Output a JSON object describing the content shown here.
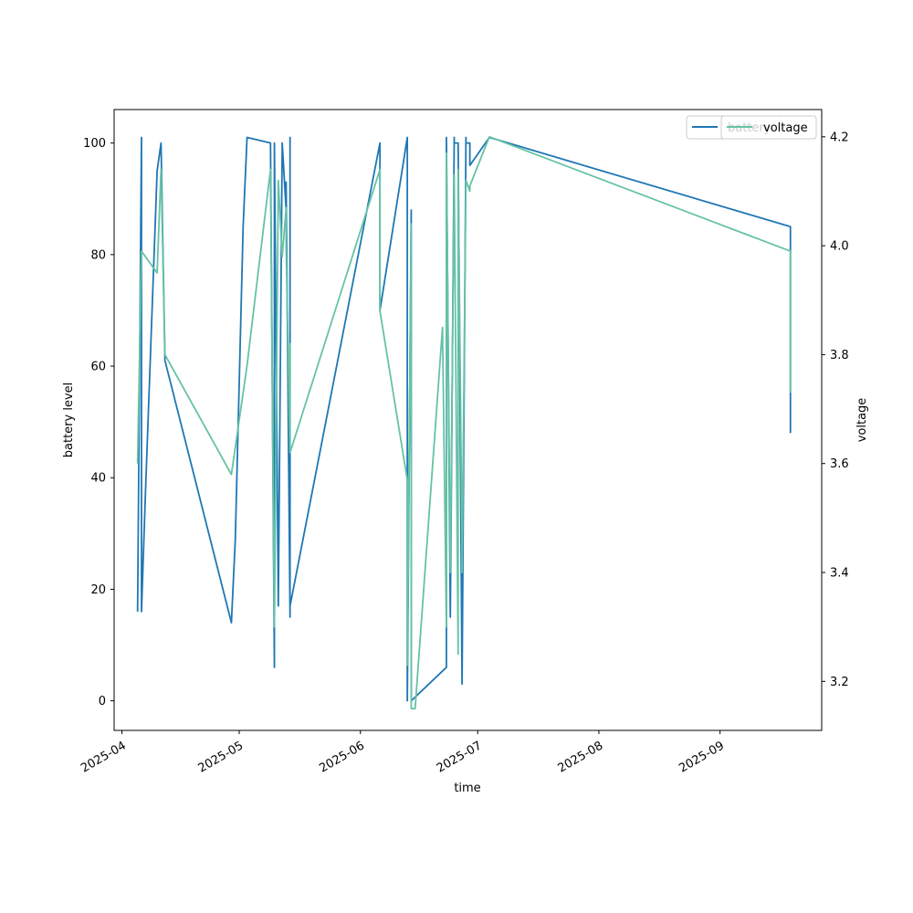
{
  "chart_data": {
    "type": "line",
    "xlabel": "time",
    "ylabel_left": "battery level",
    "ylabel_right": "voltage",
    "x_ticks": [
      "2025-04",
      "2025-05",
      "2025-06",
      "2025-07",
      "2025-08",
      "2025-09"
    ],
    "x_tick_dates": [
      "2025-04-01",
      "2025-05-01",
      "2025-06-01",
      "2025-07-01",
      "2025-08-01",
      "2025-09-01"
    ],
    "xlim": [
      "2025-03-30",
      "2025-09-27"
    ],
    "y_left_ticks": [
      "0",
      "20",
      "40",
      "60",
      "80",
      "100"
    ],
    "y_left_tick_values": [
      0,
      20,
      40,
      60,
      80,
      100
    ],
    "y_left_lim": [
      -5.3,
      106
    ],
    "y_right_ticks": [
      "3.2",
      "3.4",
      "3.6",
      "3.8",
      "4.0",
      "4.2"
    ],
    "y_right_tick_values": [
      3.2,
      3.4,
      3.6,
      3.8,
      4.0,
      4.2
    ],
    "y_right_lim": [
      3.11,
      4.25
    ],
    "legend_position": "top-right",
    "series": [
      {
        "name": "battery",
        "axis": "left",
        "color": "#1f77b4",
        "points": [
          [
            "2025-04-05",
            16
          ],
          [
            "2025-04-06",
            101
          ],
          [
            "2025-04-06",
            101
          ],
          [
            "2025-04-06",
            16
          ],
          [
            "2025-04-07",
            37
          ],
          [
            "2025-04-10",
            95
          ],
          [
            "2025-04-11",
            100
          ],
          [
            "2025-04-12",
            61
          ],
          [
            "2025-04-29",
            14
          ],
          [
            "2025-04-30",
            29
          ],
          [
            "2025-05-02",
            85
          ],
          [
            "2025-05-03",
            101
          ],
          [
            "2025-05-09",
            100
          ],
          [
            "2025-05-10",
            6
          ],
          [
            "2025-05-10",
            100
          ],
          [
            "2025-05-11",
            17
          ],
          [
            "2025-05-12",
            100
          ],
          [
            "2025-05-13",
            88
          ],
          [
            "2025-05-13",
            93
          ],
          [
            "2025-05-14",
            15
          ],
          [
            "2025-05-14",
            101
          ],
          [
            "2025-05-14",
            17
          ],
          [
            "2025-06-06",
            100
          ],
          [
            "2025-06-06",
            70
          ],
          [
            "2025-06-13",
            101
          ],
          [
            "2025-06-13",
            0
          ],
          [
            "2025-06-14",
            88
          ],
          [
            "2025-06-14",
            0
          ],
          [
            "2025-06-23",
            6
          ],
          [
            "2025-06-23",
            101
          ],
          [
            "2025-06-24",
            15
          ],
          [
            "2025-06-25",
            101
          ],
          [
            "2025-06-25",
            100
          ],
          [
            "2025-06-26",
            100
          ],
          [
            "2025-06-27",
            3
          ],
          [
            "2025-06-28",
            101
          ],
          [
            "2025-06-28",
            100
          ],
          [
            "2025-06-29",
            100
          ],
          [
            "2025-06-29",
            96
          ],
          [
            "2025-07-04",
            101
          ],
          [
            "2025-09-19",
            85
          ],
          [
            "2025-09-19",
            48
          ]
        ]
      },
      {
        "name": "voltage",
        "axis": "right",
        "color": "#66c2a5",
        "points": [
          [
            "2025-04-05",
            3.6
          ],
          [
            "2025-04-06",
            3.99
          ],
          [
            "2025-04-10",
            3.95
          ],
          [
            "2025-04-11",
            4.14
          ],
          [
            "2025-04-12",
            3.8
          ],
          [
            "2025-04-29",
            3.58
          ],
          [
            "2025-05-03",
            3.78
          ],
          [
            "2025-05-09",
            4.14
          ],
          [
            "2025-05-10",
            3.3
          ],
          [
            "2025-05-11",
            4.12
          ],
          [
            "2025-05-12",
            3.98
          ],
          [
            "2025-05-13",
            4.07
          ],
          [
            "2025-05-13",
            4.0
          ],
          [
            "2025-05-14",
            3.62
          ],
          [
            "2025-05-14",
            3.82
          ],
          [
            "2025-05-14",
            3.62
          ],
          [
            "2025-06-06",
            4.14
          ],
          [
            "2025-06-06",
            3.88
          ],
          [
            "2025-06-13",
            3.57
          ],
          [
            "2025-06-13",
            3.23
          ],
          [
            "2025-06-14",
            4.04
          ],
          [
            "2025-06-14",
            3.15
          ],
          [
            "2025-06-15",
            3.15
          ],
          [
            "2025-06-22",
            3.85
          ],
          [
            "2025-06-23",
            3.3
          ],
          [
            "2025-06-23",
            4.17
          ],
          [
            "2025-06-24",
            3.4
          ],
          [
            "2025-06-25",
            4.13
          ],
          [
            "2025-06-26",
            3.25
          ],
          [
            "2025-06-26",
            4.14
          ],
          [
            "2025-06-27",
            3.45
          ],
          [
            "2025-06-27",
            3.4
          ],
          [
            "2025-06-28",
            4.12
          ],
          [
            "2025-06-29",
            4.1
          ],
          [
            "2025-06-29",
            4.11
          ],
          [
            "2025-07-04",
            4.2
          ],
          [
            "2025-09-19",
            3.99
          ],
          [
            "2025-09-19",
            3.73
          ]
        ]
      }
    ],
    "legend": [
      {
        "label": "battery",
        "color": "#1f77b4"
      },
      {
        "label": "voltage",
        "color": "#66c2a5"
      }
    ]
  }
}
